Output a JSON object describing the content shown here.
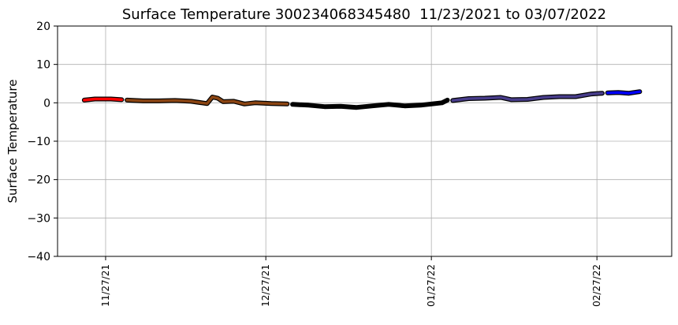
{
  "chart_data": {
    "type": "line",
    "title": "Surface Temperature 300234068345480  11/23/2021 to 03/07/2022",
    "ylabel": "Surface Temperature",
    "xlim": [
      "2021-11-18",
      "2022-03-13"
    ],
    "xticks": [
      {
        "value": "2021-11-27",
        "label": "11/27/21"
      },
      {
        "value": "2021-12-27",
        "label": "12/27/21"
      },
      {
        "value": "2022-01-27",
        "label": "01/27/22"
      },
      {
        "value": "2022-02-27",
        "label": "02/27/22"
      }
    ],
    "ylim": [
      -40,
      20
    ],
    "yticks": [
      {
        "value": -40,
        "label": "−40"
      },
      {
        "value": -30,
        "label": "−30"
      },
      {
        "value": -20,
        "label": "−20"
      },
      {
        "value": -10,
        "label": "−10"
      },
      0,
      10,
      20
    ],
    "grid": true,
    "series": [
      {
        "color": "#ff0000",
        "x": [
          "2021-11-23",
          "2021-11-25",
          "2021-11-28",
          "2021-11-30"
        ],
        "values": [
          0.7,
          1.0,
          1.0,
          0.8
        ]
      },
      {
        "color": "#8b4513",
        "x": [
          "2021-12-01",
          "2021-12-04",
          "2021-12-07",
          "2021-12-10",
          "2021-12-13",
          "2021-12-15",
          "2021-12-16",
          "2021-12-17",
          "2021-12-18",
          "2021-12-19",
          "2021-12-21",
          "2021-12-23",
          "2021-12-25",
          "2021-12-28",
          "2021-12-31"
        ],
        "values": [
          0.7,
          0.5,
          0.5,
          0.6,
          0.4,
          0.0,
          -0.2,
          1.5,
          1.2,
          0.3,
          0.4,
          -0.3,
          0.0,
          -0.2,
          -0.3
        ]
      },
      {
        "color": "#000000",
        "x": [
          "2022-01-01",
          "2022-01-04",
          "2022-01-07",
          "2022-01-10",
          "2022-01-13",
          "2022-01-16",
          "2022-01-19",
          "2022-01-22",
          "2022-01-25",
          "2022-01-27",
          "2022-01-29",
          "2022-01-30"
        ],
        "values": [
          -0.4,
          -0.6,
          -1.0,
          -0.9,
          -1.2,
          -0.8,
          -0.4,
          -0.8,
          -0.6,
          -0.3,
          0.0,
          0.7
        ]
      },
      {
        "color": "#483d8b",
        "x": [
          "2022-01-31",
          "2022-02-03",
          "2022-02-06",
          "2022-02-09",
          "2022-02-11",
          "2022-02-14",
          "2022-02-17",
          "2022-02-20",
          "2022-02-23",
          "2022-02-26",
          "2022-02-28"
        ],
        "values": [
          0.6,
          1.1,
          1.2,
          1.4,
          0.8,
          0.9,
          1.4,
          1.6,
          1.6,
          2.3,
          2.5
        ]
      },
      {
        "color": "#0000ff",
        "x": [
          "2022-03-01",
          "2022-03-03",
          "2022-03-05",
          "2022-03-07"
        ],
        "values": [
          2.6,
          2.7,
          2.5,
          2.9
        ]
      }
    ]
  }
}
